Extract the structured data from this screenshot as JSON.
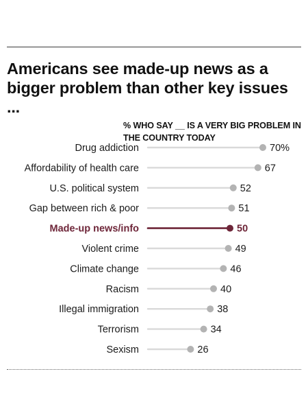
{
  "title": "Americans see made-up news as a bigger problem than other key issues ...",
  "subhead": "% WHO SAY __ IS A VERY BIG PROBLEM IN THE COUNTRY TODAY",
  "colors": {
    "track": "#d9d9d9",
    "dot": "#b3b3b3",
    "highlight": "#6e2639",
    "label": "#1a1a1a"
  },
  "chart_data": {
    "type": "dot",
    "xlim": [
      0,
      100
    ],
    "categories": [
      "Drug addiction",
      "Affordability of health care",
      "U.S. political system",
      "Gap between rich & poor",
      "Made-up news/info",
      "Violent crime",
      "Climate change",
      "Racism",
      "Illegal immigration",
      "Terrorism",
      "Sexism"
    ],
    "values": [
      70,
      67,
      52,
      51,
      50,
      49,
      46,
      40,
      38,
      34,
      26
    ],
    "value_labels": [
      "70%",
      "67",
      "52",
      "51",
      "50",
      "49",
      "46",
      "40",
      "38",
      "34",
      "26"
    ],
    "highlight": "Made-up news/info"
  }
}
